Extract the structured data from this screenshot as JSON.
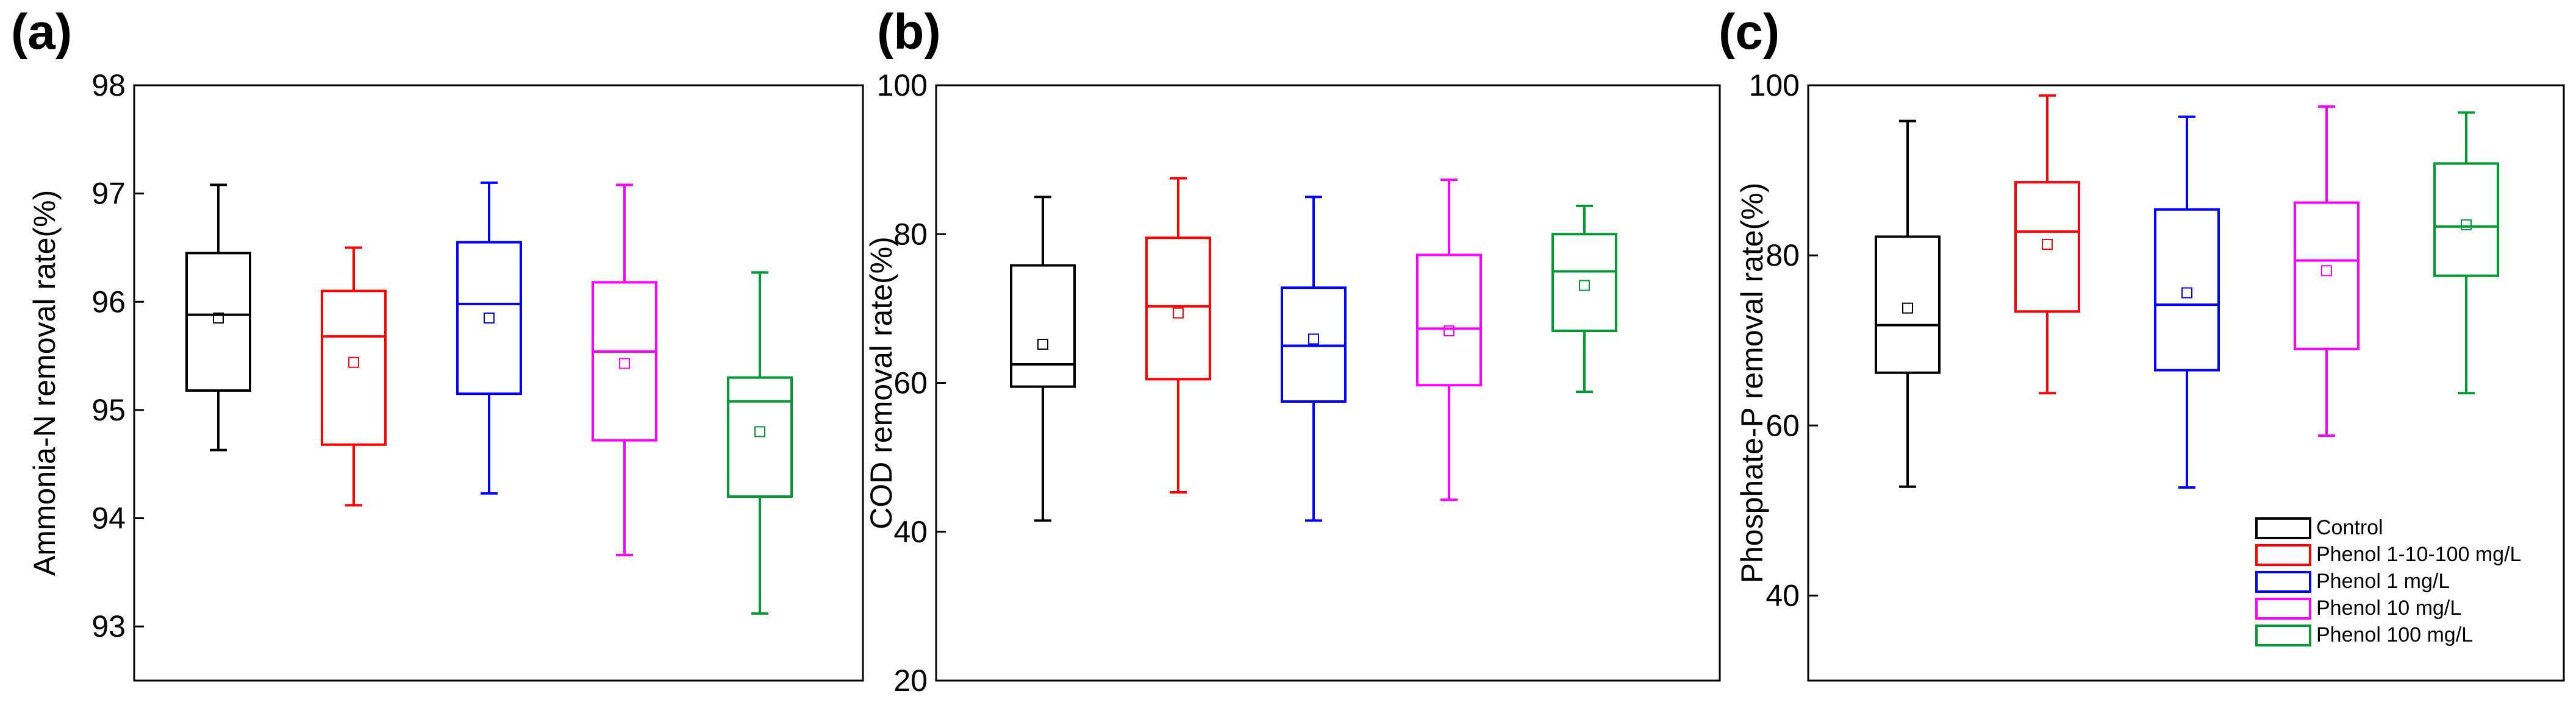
{
  "colors": {
    "Control": "#000000",
    "Phenol 1-10-100 mg/L": "#ff0000",
    "Phenol 1 mg/L": "#0000ff",
    "Phenol 10 mg/L": "#ff00ff",
    "Phenol 100 mg/L": "#009933"
  },
  "legend": {
    "entries": [
      "Control",
      "Phenol 1-10-100 mg/L",
      "Phenol 1 mg/L",
      "Phenol 10 mg/L",
      "Phenol 100 mg/L"
    ],
    "placement": "bottom-right of panel (c)"
  },
  "chart_data": [
    {
      "type": "box",
      "panel_label": "(a)",
      "title": "",
      "ylabel": "Ammonia-N removal rate(%)",
      "xlabel": "",
      "ylim": [
        92.5,
        98.0
      ],
      "yticks": [
        93,
        94,
        95,
        96,
        97,
        98
      ],
      "grid": false,
      "series": [
        {
          "name": "Control",
          "whisker_low": 94.63,
          "q1": 95.18,
          "median": 95.88,
          "q3": 96.45,
          "whisker_high": 97.08,
          "mean": 95.85
        },
        {
          "name": "Phenol 1-10-100 mg/L",
          "whisker_low": 94.12,
          "q1": 94.68,
          "median": 95.68,
          "q3": 96.1,
          "whisker_high": 96.5,
          "mean": 95.44
        },
        {
          "name": "Phenol 1 mg/L",
          "whisker_low": 94.23,
          "q1": 95.15,
          "median": 95.98,
          "q3": 96.55,
          "whisker_high": 97.1,
          "mean": 95.85
        },
        {
          "name": "Phenol 10 mg/L",
          "whisker_low": 93.66,
          "q1": 94.72,
          "median": 95.54,
          "q3": 96.18,
          "whisker_high": 97.08,
          "mean": 95.43
        },
        {
          "name": "Phenol 100 mg/L",
          "whisker_low": 93.12,
          "q1": 94.2,
          "median": 95.08,
          "q3": 95.3,
          "whisker_high": 96.27,
          "mean": 94.8
        }
      ]
    },
    {
      "type": "box",
      "panel_label": "(b)",
      "title": "",
      "ylabel": "COD removal rate(%)",
      "xlabel": "",
      "ylim": [
        20,
        100
      ],
      "yticks": [
        20,
        40,
        60,
        80,
        100
      ],
      "grid": false,
      "series": [
        {
          "name": "Control",
          "whisker_low": 41.5,
          "q1": 59.5,
          "median": 62.5,
          "q3": 75.8,
          "whisker_high": 85.0,
          "mean": 65.2
        },
        {
          "name": "Phenol 1-10-100 mg/L",
          "whisker_low": 45.3,
          "q1": 60.5,
          "median": 70.3,
          "q3": 79.5,
          "whisker_high": 87.5,
          "mean": 69.4
        },
        {
          "name": "Phenol 1 mg/L",
          "whisker_low": 41.5,
          "q1": 57.5,
          "median": 65.0,
          "q3": 72.8,
          "whisker_high": 85.0,
          "mean": 65.9
        },
        {
          "name": "Phenol 10 mg/L",
          "whisker_low": 44.3,
          "q1": 59.7,
          "median": 67.3,
          "q3": 77.2,
          "whisker_high": 87.3,
          "mean": 67.0
        },
        {
          "name": "Phenol 100 mg/L",
          "whisker_low": 58.8,
          "q1": 67.0,
          "median": 75.0,
          "q3": 80.0,
          "whisker_high": 83.8,
          "mean": 73.1
        }
      ]
    },
    {
      "type": "box",
      "panel_label": "(c)",
      "title": "",
      "ylabel": "Phosphate-P removal rate(%)",
      "xlabel": "",
      "ylim": [
        30,
        100
      ],
      "yticks": [
        40,
        60,
        80,
        100
      ],
      "grid": false,
      "series": [
        {
          "name": "Control",
          "whisker_low": 52.8,
          "q1": 66.2,
          "median": 71.8,
          "q3": 82.2,
          "whisker_high": 95.8,
          "mean": 73.8
        },
        {
          "name": "Phenol 1-10-100 mg/L",
          "whisker_low": 63.8,
          "q1": 73.4,
          "median": 82.8,
          "q3": 88.6,
          "whisker_high": 98.8,
          "mean": 81.3
        },
        {
          "name": "Phenol 1 mg/L",
          "whisker_low": 52.7,
          "q1": 66.5,
          "median": 74.2,
          "q3": 85.4,
          "whisker_high": 96.3,
          "mean": 75.6
        },
        {
          "name": "Phenol 10 mg/L",
          "whisker_low": 58.8,
          "q1": 69.0,
          "median": 79.4,
          "q3": 86.2,
          "whisker_high": 97.5,
          "mean": 78.2
        },
        {
          "name": "Phenol 100 mg/L",
          "whisker_low": 63.8,
          "q1": 77.6,
          "median": 83.4,
          "q3": 90.8,
          "whisker_high": 96.8,
          "mean": 83.6
        }
      ]
    }
  ]
}
